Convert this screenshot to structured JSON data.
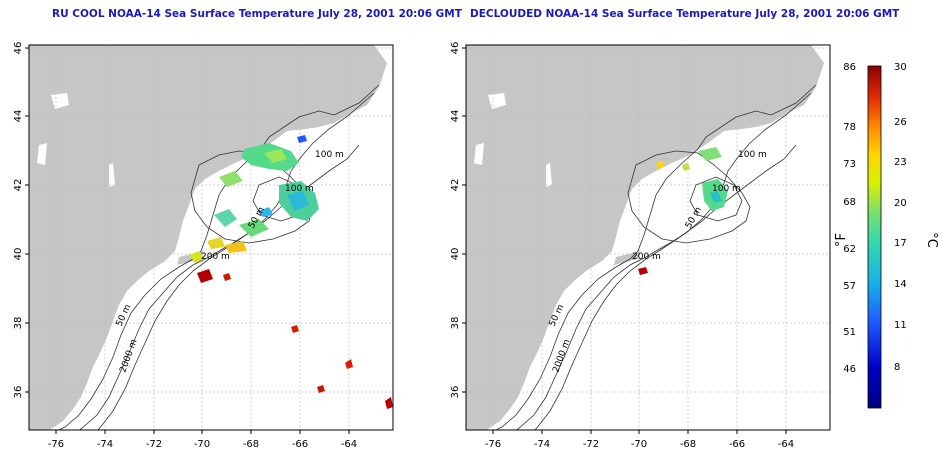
{
  "panels": [
    {
      "title": "RU COOL NOAA-14 Sea Surface Temperature July 28, 2001 20:06 GMT",
      "contour_labels": [
        "100 m",
        "100 m",
        "50 m",
        "200 m",
        "50 m",
        "2000 m"
      ]
    },
    {
      "title": "DECLOUDED NOAA-14 Sea Surface Temperature July 28, 2001 20:06 GMT",
      "contour_labels": [
        "100 m",
        "100 m",
        "50 m",
        "200 m",
        "50 m",
        "2000 m"
      ]
    }
  ],
  "axes": {
    "lon_ticks": [
      "-76",
      "-74",
      "-72",
      "-70",
      "-68",
      "-66",
      "-64"
    ],
    "lat_ticks": [
      "46",
      "44",
      "42",
      "40",
      "38",
      "36"
    ]
  },
  "colorbar": {
    "f_label": "°F",
    "c_label": "°C",
    "f_ticks": [
      "86",
      "78",
      "73",
      "68",
      "62",
      "57",
      "51",
      "46"
    ],
    "c_ticks": [
      "30",
      "26",
      "23",
      "20",
      "17",
      "14",
      "11",
      "8"
    ],
    "colors": [
      "#8b0000",
      "#d81e05",
      "#ff7f00",
      "#ffd700",
      "#c8f000",
      "#66e07a",
      "#2fd2b8",
      "#19a5e6",
      "#1e50ff",
      "#0000b4",
      "#000080"
    ]
  }
}
